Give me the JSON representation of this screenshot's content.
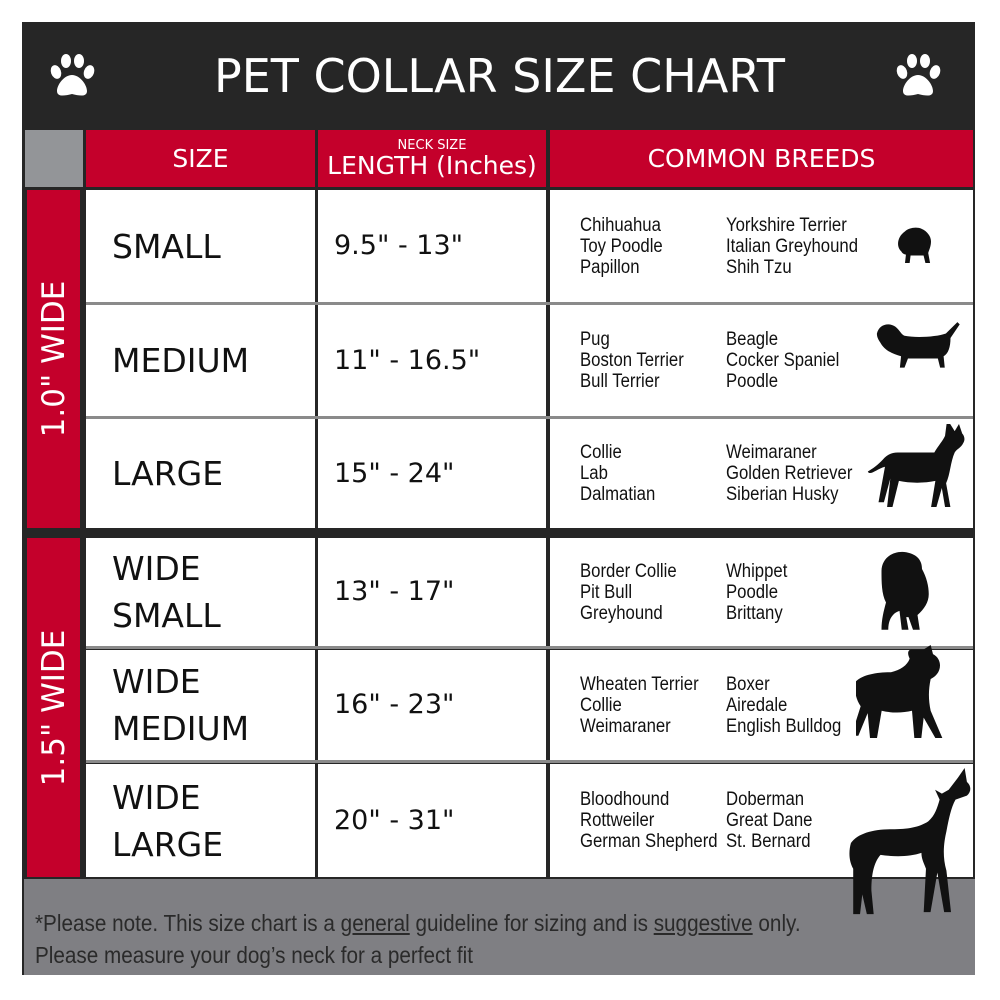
{
  "title": "PET COLLAR SIZE CHART",
  "colors": {
    "header_bg": "#262626",
    "accent_red": "#c4002b",
    "footer_gray": "#7f7f83",
    "corner_gray": "#939598"
  },
  "columns": {
    "size": "SIZE",
    "length_small": "NECK SIZE",
    "length": "LENGTH (Inches)",
    "breeds": "COMMON BREEDS"
  },
  "groups": [
    {
      "label": "1.0\" WIDE"
    },
    {
      "label": "1.5\" WIDE"
    }
  ],
  "rows": [
    {
      "size": [
        "SMALL"
      ],
      "length": "9.5\" - 13\"",
      "breeds_a": [
        "Chihuahua",
        "Toy Poodle",
        "Papillon"
      ],
      "breeds_b": [
        "Yorkshire Terrier",
        "Italian Greyhound",
        "Shih Tzu"
      ],
      "icon": "small-dog-silhouette-icon"
    },
    {
      "size": [
        "MEDIUM"
      ],
      "length": "11\" - 16.5\"",
      "breeds_a": [
        "Pug",
        "Boston Terrier",
        "Bull Terrier"
      ],
      "breeds_b": [
        "Beagle",
        "Cocker Spaniel",
        "Poodle"
      ],
      "icon": "dachshund-silhouette-icon"
    },
    {
      "size": [
        "LARGE"
      ],
      "length": "15\" - 24\"",
      "breeds_a": [
        "Collie",
        "Lab",
        "Dalmatian"
      ],
      "breeds_b": [
        "Weimaraner",
        "Golden Retriever",
        "Siberian Husky"
      ],
      "icon": "shepherd-silhouette-icon"
    },
    {
      "size": [
        "WIDE",
        "SMALL"
      ],
      "length": "13\" - 17\"",
      "breeds_a": [
        "Border Collie",
        "Pit Bull",
        "Greyhound"
      ],
      "breeds_b": [
        "Whippet",
        "Poodle",
        "Brittany"
      ],
      "icon": "bulldog-silhouette-icon"
    },
    {
      "size": [
        "WIDE",
        "MEDIUM"
      ],
      "length": "16\" - 23\"",
      "breeds_a": [
        "Wheaten Terrier",
        "Collie",
        "Weimaraner"
      ],
      "breeds_b": [
        "Boxer",
        "Airedale",
        "English Bulldog"
      ],
      "icon": "pitbull-silhouette-icon"
    },
    {
      "size": [
        "WIDE",
        "LARGE"
      ],
      "length": "20\" - 31\"",
      "breeds_a": [
        "Bloodhound",
        "Rottweiler",
        "German Shepherd"
      ],
      "breeds_b": [
        "Doberman",
        "Great Dane",
        "St. Bernard"
      ],
      "icon": "doberman-silhouette-icon"
    }
  ],
  "footer": {
    "line1_a": "*Please note. This size chart is a ",
    "line1_u1": "general",
    "line1_b": " guideline for sizing and is ",
    "line1_u2": "suggestive",
    "line1_c": " only.",
    "line2": "Please measure your dog’s neck for a perfect fit"
  }
}
